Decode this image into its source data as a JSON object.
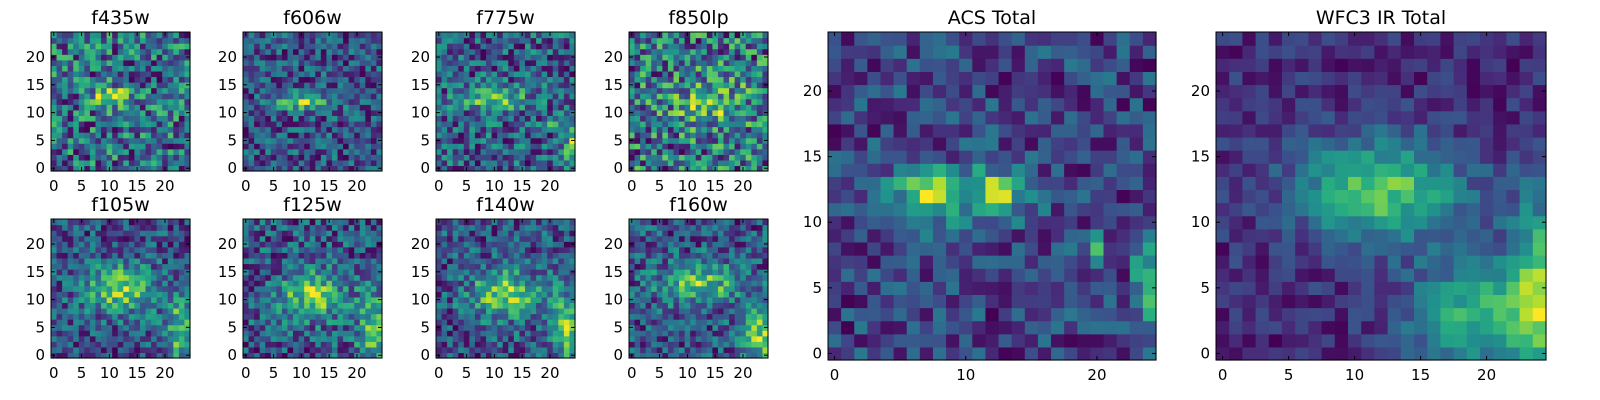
{
  "colormap": "viridis",
  "colors": {
    "colormap_stops": [
      "#440154",
      "#3b528b",
      "#21918c",
      "#5ec962",
      "#fde725"
    ],
    "axis_color": "#000000",
    "background": "#ffffff"
  },
  "chart_data": [
    {
      "id": "f435w",
      "type": "heatmap",
      "title": "f435w",
      "size": "small",
      "grid_size": 25,
      "xlim": [
        -0.5,
        24.5
      ],
      "ylim": [
        -0.5,
        24.5
      ],
      "xticks": [
        0,
        5,
        10,
        15,
        20
      ],
      "yticks": [
        0,
        5,
        10,
        15,
        20
      ],
      "grid": false,
      "source": {
        "blobs": [
          {
            "cx": 10.5,
            "cy": 13,
            "sx": 3.0,
            "sy": 1.3,
            "amp": 0.35
          }
        ],
        "base": 0.42,
        "noise": 0.32,
        "seed": 11
      }
    },
    {
      "id": "f606w",
      "type": "heatmap",
      "title": "f606w",
      "size": "small",
      "grid_size": 25,
      "xlim": [
        -0.5,
        24.5
      ],
      "ylim": [
        -0.5,
        24.5
      ],
      "xticks": [
        0,
        5,
        10,
        15,
        20
      ],
      "yticks": [
        0,
        5,
        10,
        15,
        20
      ],
      "grid": false,
      "source": {
        "blobs": [
          {
            "cx": 10,
            "cy": 12,
            "sx": 3.6,
            "sy": 1.1,
            "amp": 0.6
          }
        ],
        "base": 0.35,
        "noise": 0.3,
        "seed": 23
      }
    },
    {
      "id": "f775w",
      "type": "heatmap",
      "title": "f775w",
      "size": "small",
      "grid_size": 25,
      "xlim": [
        -0.5,
        24.5
      ],
      "ylim": [
        -0.5,
        24.5
      ],
      "xticks": [
        0,
        5,
        10,
        15,
        20
      ],
      "yticks": [
        0,
        5,
        10,
        15,
        20
      ],
      "grid": false,
      "source": {
        "blobs": [
          {
            "cx": 10,
            "cy": 12.5,
            "sx": 4.0,
            "sy": 1.5,
            "amp": 0.4
          },
          {
            "cx": 20,
            "cy": 8,
            "sx": 0.8,
            "sy": 0.6,
            "amp": 0.4
          },
          {
            "cx": 24,
            "cy": 5,
            "sx": 1.0,
            "sy": 3.0,
            "amp": 0.4
          }
        ],
        "base": 0.42,
        "noise": 0.28,
        "seed": 37
      }
    },
    {
      "id": "f850lp",
      "type": "heatmap",
      "title": "f850lp",
      "size": "small",
      "grid_size": 25,
      "xlim": [
        -0.5,
        24.5
      ],
      "ylim": [
        -0.5,
        24.5
      ],
      "xticks": [
        0,
        5,
        10,
        15,
        20
      ],
      "yticks": [
        0,
        5,
        10,
        15,
        20
      ],
      "grid": false,
      "source": {
        "blobs": [
          {
            "cx": 14,
            "cy": 12,
            "sx": 4.5,
            "sy": 3.0,
            "amp": 0.3
          }
        ],
        "base": 0.48,
        "noise": 0.38,
        "seed": 41
      }
    },
    {
      "id": "f105w",
      "type": "heatmap",
      "title": "f105w",
      "size": "small",
      "grid_size": 25,
      "xlim": [
        -0.5,
        24.5
      ],
      "ylim": [
        -0.5,
        24.5
      ],
      "xticks": [
        0,
        5,
        10,
        15,
        20
      ],
      "yticks": [
        0,
        5,
        10,
        15,
        20
      ],
      "grid": false,
      "source": {
        "blobs": [
          {
            "cx": 12,
            "cy": 12,
            "sx": 4.5,
            "sy": 3.0,
            "amp": 0.45
          },
          {
            "cx": 23,
            "cy": 5,
            "sx": 2.0,
            "sy": 4.5,
            "amp": 0.4
          }
        ],
        "base": 0.4,
        "noise": 0.22,
        "seed": 53
      }
    },
    {
      "id": "f125w",
      "type": "heatmap",
      "title": "f125w",
      "size": "small",
      "grid_size": 25,
      "xlim": [
        -0.5,
        24.5
      ],
      "ylim": [
        -0.5,
        24.5
      ],
      "xticks": [
        0,
        5,
        10,
        15,
        20
      ],
      "yticks": [
        0,
        5,
        10,
        15,
        20
      ],
      "grid": false,
      "source": {
        "blobs": [
          {
            "cx": 12,
            "cy": 11,
            "sx": 4.0,
            "sy": 3.0,
            "amp": 0.45
          },
          {
            "cx": 23,
            "cy": 5,
            "sx": 2.0,
            "sy": 4.5,
            "amp": 0.4
          }
        ],
        "base": 0.42,
        "noise": 0.24,
        "seed": 67
      }
    },
    {
      "id": "f140w",
      "type": "heatmap",
      "title": "f140w",
      "size": "small",
      "grid_size": 25,
      "xlim": [
        -0.5,
        24.5
      ],
      "ylim": [
        -0.5,
        24.5
      ],
      "xticks": [
        0,
        5,
        10,
        15,
        20
      ],
      "yticks": [
        0,
        5,
        10,
        15,
        20
      ],
      "grid": false,
      "source": {
        "blobs": [
          {
            "cx": 12,
            "cy": 11,
            "sx": 4.5,
            "sy": 3.0,
            "amp": 0.45
          },
          {
            "cx": 23,
            "cy": 5,
            "sx": 2.0,
            "sy": 4.5,
            "amp": 0.4
          }
        ],
        "base": 0.42,
        "noise": 0.22,
        "seed": 79
      }
    },
    {
      "id": "f160w",
      "type": "heatmap",
      "title": "f160w",
      "size": "small",
      "grid_size": 25,
      "xlim": [
        -0.5,
        24.5
      ],
      "ylim": [
        -0.5,
        24.5
      ],
      "xticks": [
        0,
        5,
        10,
        15,
        20
      ],
      "yticks": [
        0,
        5,
        10,
        15,
        20
      ],
      "grid": false,
      "source": {
        "blobs": [
          {
            "cx": 12,
            "cy": 13,
            "sx": 5.0,
            "sy": 2.5,
            "amp": 0.4
          },
          {
            "cx": 23,
            "cy": 4,
            "sx": 2.5,
            "sy": 4.0,
            "amp": 0.45
          }
        ],
        "base": 0.4,
        "noise": 0.22,
        "seed": 83
      }
    },
    {
      "id": "acs-total",
      "type": "heatmap",
      "title": "ACS Total",
      "size": "large",
      "grid_size": 25,
      "xlim": [
        -0.5,
        24.5
      ],
      "ylim": [
        -0.5,
        24.5
      ],
      "xticks": [
        0,
        10,
        20
      ],
      "yticks": [
        0,
        5,
        10,
        15,
        20
      ],
      "grid": false,
      "source": {
        "blobs": [
          {
            "cx": 7,
            "cy": 12.5,
            "sx": 1.6,
            "sy": 1.0,
            "amp": 0.45
          },
          {
            "cx": 12.5,
            "cy": 12.5,
            "sx": 1.4,
            "sy": 1.0,
            "amp": 0.5
          },
          {
            "cx": 10,
            "cy": 12,
            "sx": 4.0,
            "sy": 1.8,
            "amp": 0.25
          },
          {
            "cx": 20,
            "cy": 8,
            "sx": 0.6,
            "sy": 0.6,
            "amp": 0.55
          },
          {
            "cx": 24,
            "cy": 5.5,
            "sx": 0.8,
            "sy": 2.5,
            "amp": 0.5
          }
        ],
        "base": 0.45,
        "noise": 0.2,
        "seed": 101
      }
    },
    {
      "id": "wfc3-ir-total",
      "type": "heatmap",
      "title": "WFC3 IR Total",
      "size": "large",
      "grid_size": 25,
      "xlim": [
        -0.5,
        24.5
      ],
      "ylim": [
        -0.5,
        24.5
      ],
      "xticks": [
        0,
        5,
        10,
        15,
        20
      ],
      "yticks": [
        0,
        5,
        10,
        15,
        20
      ],
      "grid": false,
      "source": {
        "blobs": [
          {
            "cx": 12,
            "cy": 12.5,
            "sx": 4.5,
            "sy": 2.8,
            "amp": 0.5
          },
          {
            "cx": 20,
            "cy": 3,
            "sx": 4.0,
            "sy": 3.0,
            "amp": 0.45
          },
          {
            "cx": 24,
            "cy": 6,
            "sx": 1.5,
            "sy": 5.0,
            "amp": 0.4
          }
        ],
        "base": 0.42,
        "noise": 0.1,
        "seed": 131
      }
    }
  ]
}
